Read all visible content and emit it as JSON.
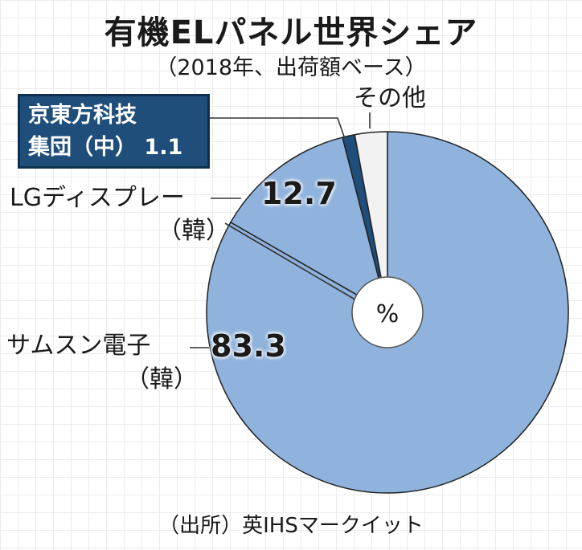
{
  "title": "有機ELパネル世界シェア",
  "subtitle": "（2018年、出荷額ベース）",
  "source": "（出所）英IHSマークイット",
  "chart_data": {
    "type": "pie",
    "unit": "%",
    "slices": [
      {
        "label": "サムスン電子",
        "sub": "（韓）",
        "value": 83.3,
        "color": "#8fb3dc"
      },
      {
        "label": "LGディスプレー",
        "sub": "（韓）",
        "value": 12.7,
        "color": "#8fb3dc"
      },
      {
        "label": "京東方科技",
        "sub": "集団（中）",
        "value": 1.1,
        "color": "#1f4e7a"
      },
      {
        "label": "その他",
        "sub": "",
        "value": 2.9,
        "color": "#f2f2f2"
      }
    ],
    "labels": {
      "samsung_value": "83.3",
      "lg_value": "12.7",
      "boe_value": "1.1",
      "center_unit": "%"
    }
  }
}
